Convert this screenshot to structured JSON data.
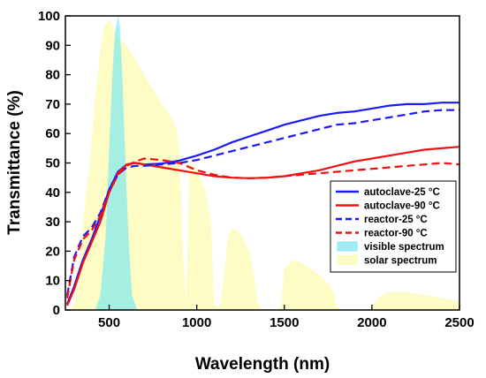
{
  "chart_data": {
    "type": "line",
    "xlabel": "Wavelength (nm)",
    "ylabel": "Transmittance (%)",
    "xlim": [
      250,
      2500
    ],
    "ylim": [
      0,
      100
    ],
    "xticks": [
      500,
      1000,
      1500,
      2000,
      2500
    ],
    "yticks": [
      0,
      10,
      20,
      30,
      40,
      50,
      60,
      70,
      80,
      90,
      100
    ],
    "grid": false,
    "legend_position": "lower-right",
    "series": [
      {
        "name": "autoclave-25 °C",
        "style": "solid",
        "color": "#1a1aff",
        "x": [
          260,
          300,
          350,
          400,
          450,
          500,
          550,
          600,
          650,
          700,
          800,
          900,
          1000,
          1100,
          1200,
          1300,
          1400,
          1500,
          1600,
          1700,
          1800,
          1900,
          2000,
          2100,
          2200,
          2300,
          2400,
          2500
        ],
        "y": [
          2,
          8,
          17,
          24,
          32,
          41,
          47,
          49.5,
          50,
          49.5,
          49.8,
          50.8,
          52.5,
          54.5,
          57,
          59,
          61,
          63,
          64.5,
          66,
          67,
          67.5,
          68.5,
          69.5,
          70,
          70,
          70.5,
          70.5
        ]
      },
      {
        "name": "autoclave-90 °C",
        "style": "solid",
        "color": "#ee1111",
        "x": [
          260,
          300,
          350,
          400,
          450,
          500,
          550,
          600,
          650,
          700,
          800,
          900,
          1000,
          1100,
          1200,
          1300,
          1400,
          1500,
          1600,
          1700,
          1800,
          1900,
          2000,
          2100,
          2200,
          2300,
          2400,
          2500
        ],
        "y": [
          1.5,
          7,
          16,
          23,
          30,
          40,
          46.5,
          49.5,
          50,
          49.5,
          48.5,
          47.5,
          46.5,
          45.5,
          45,
          44.8,
          45,
          45.5,
          46.5,
          47.5,
          49,
          50.5,
          51.5,
          52.5,
          53.5,
          54.5,
          55,
          55.5
        ]
      },
      {
        "name": "reactor-25 °C",
        "style": "dashed",
        "color": "#1a1aff",
        "x": [
          260,
          300,
          350,
          400,
          450,
          500,
          550,
          600,
          650,
          700,
          800,
          900,
          1000,
          1100,
          1200,
          1300,
          1400,
          1500,
          1600,
          1700,
          1800,
          1900,
          2000,
          2100,
          2200,
          2300,
          2400,
          2500
        ],
        "y": [
          5,
          18,
          25,
          28,
          33,
          41,
          46,
          48.5,
          49,
          49,
          49.5,
          50,
          51,
          52.5,
          54,
          55.5,
          57,
          58.5,
          60,
          61.5,
          63,
          63.5,
          64.5,
          65.5,
          66.5,
          67.5,
          68,
          68
        ]
      },
      {
        "name": "reactor-90 °C",
        "style": "dashed",
        "color": "#ee1111",
        "x": [
          260,
          300,
          350,
          400,
          450,
          500,
          550,
          600,
          650,
          700,
          800,
          900,
          1000,
          1100,
          1200,
          1300,
          1400,
          1500,
          1600,
          1700,
          1800,
          1900,
          2000,
          2100,
          2200,
          2300,
          2400,
          2500
        ],
        "y": [
          4,
          17,
          24,
          27,
          32,
          40,
          46,
          49,
          50.5,
          51.5,
          51,
          50,
          47.5,
          46,
          45,
          44.8,
          45,
          45.5,
          46,
          46.5,
          47,
          47.5,
          48,
          48.5,
          49,
          49.5,
          50,
          49.5
        ]
      },
      {
        "name": "visible spectrum",
        "style": "filled",
        "color": "#80e8f0",
        "x": [
          420,
          450,
          480,
          500,
          520,
          535,
          550,
          560,
          575,
          590,
          610,
          630,
          660
        ],
        "y": [
          0,
          5,
          25,
          55,
          82,
          95,
          100,
          97,
          80,
          55,
          25,
          5,
          0
        ]
      },
      {
        "name": "solar spectrum",
        "style": "filled",
        "color": "#fbfbb0",
        "x": [
          280,
          300,
          330,
          360,
          390,
          420,
          450,
          470,
          500,
          530,
          560,
          600,
          650,
          700,
          750,
          800,
          850,
          880,
          900,
          920,
          940,
          960,
          1000,
          1050,
          1080,
          1100,
          1120,
          1140,
          1180,
          1200,
          1250,
          1300,
          1330,
          1350,
          1380,
          1420,
          1450,
          1480,
          1500,
          1550,
          1600,
          1650,
          1700,
          1750,
          1780,
          1800,
          1850,
          1900,
          1950,
          1980,
          2000,
          2050,
          2100,
          2200,
          2300,
          2400,
          2500
        ],
        "y": [
          0,
          2,
          15,
          35,
          50,
          72,
          88,
          96,
          99,
          95,
          92,
          90,
          85,
          80,
          75,
          70,
          66,
          62,
          55,
          20,
          3,
          50,
          48,
          40,
          30,
          2,
          1,
          3,
          25,
          28,
          26,
          20,
          10,
          2,
          0,
          0,
          0,
          1,
          14,
          17,
          16,
          14,
          12,
          9,
          6,
          1,
          0,
          0,
          0,
          0,
          1,
          5,
          6,
          6,
          5,
          4,
          3
        ]
      }
    ]
  }
}
